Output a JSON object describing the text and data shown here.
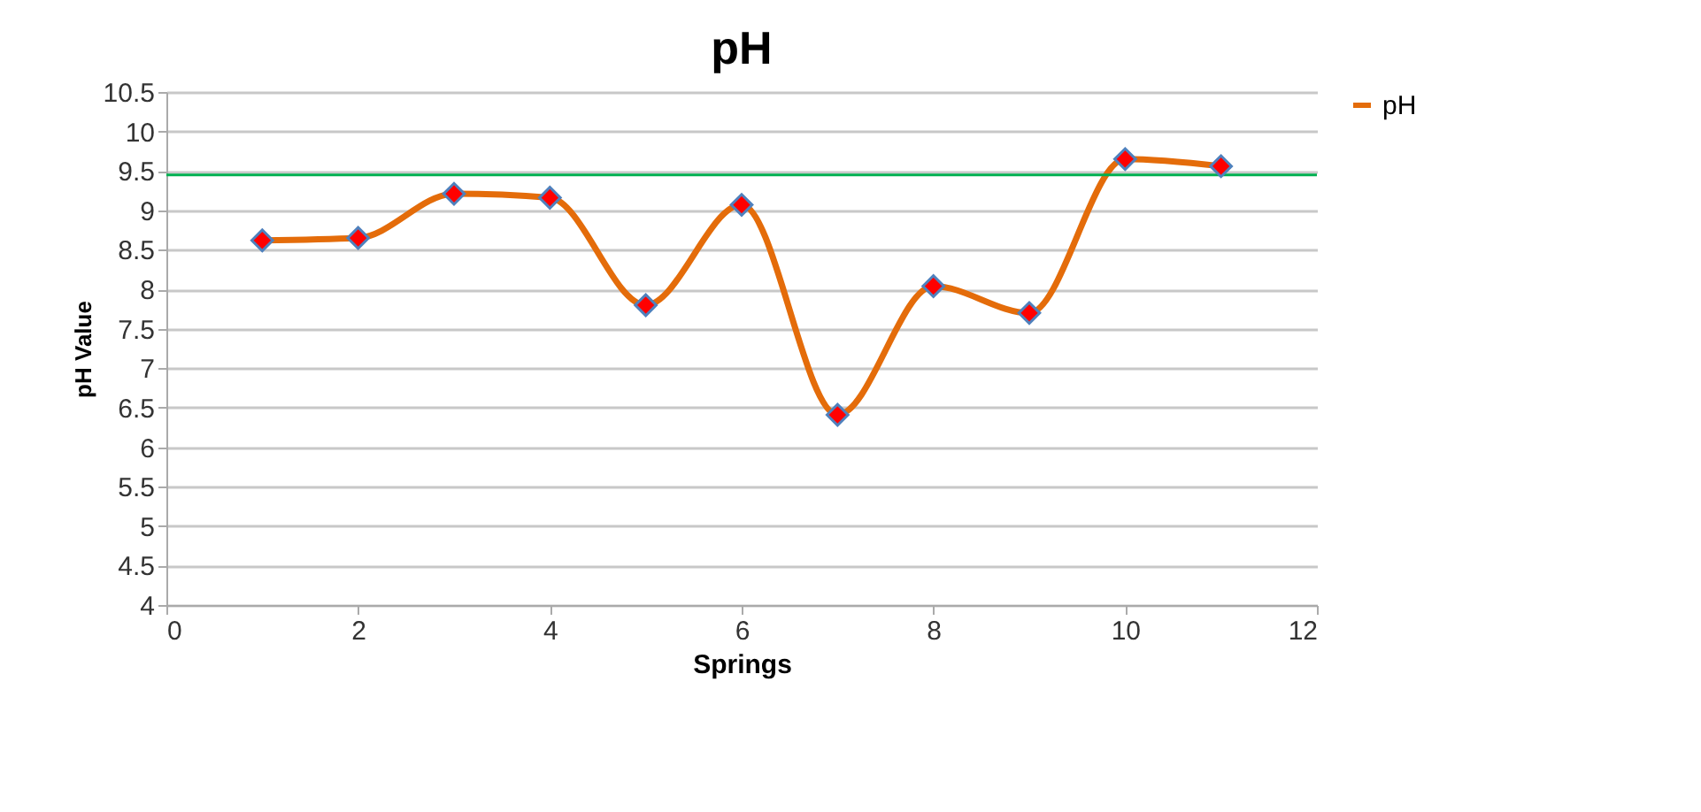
{
  "chart_data": {
    "type": "line",
    "title": "pH",
    "xlabel": "Springs",
    "ylabel": "pH Value",
    "x": [
      1,
      2,
      3,
      4,
      5,
      6,
      7,
      8,
      9,
      10,
      11
    ],
    "series": [
      {
        "name": "pH",
        "color": "#e46c0a",
        "values": [
          8.62,
          8.65,
          9.21,
          9.16,
          7.8,
          9.07,
          6.41,
          8.04,
          7.7,
          9.65,
          9.56
        ]
      }
    ],
    "xlim": [
      0,
      12
    ],
    "xticks": [
      0,
      2,
      4,
      6,
      8,
      10,
      12
    ],
    "ylim": [
      4,
      10.5
    ],
    "yticks": [
      4,
      4.5,
      5,
      5.5,
      6,
      6.5,
      7,
      7.5,
      8,
      8.5,
      9,
      9.5,
      10,
      10.5
    ],
    "ref_lines": [
      {
        "axis": "y",
        "value": 9.45,
        "color": "#00b050"
      }
    ],
    "grid": "y",
    "legend": "right",
    "marker": "diamond",
    "line_style": "solid"
  }
}
